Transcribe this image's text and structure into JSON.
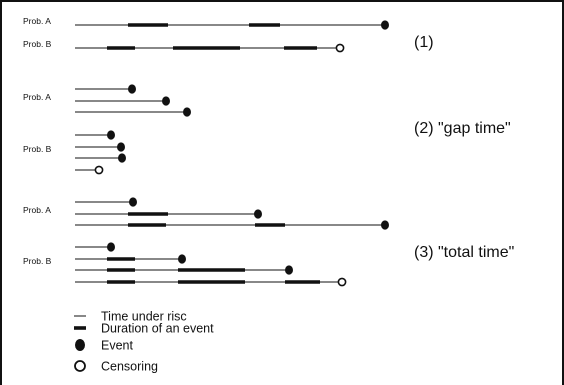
{
  "figure": {
    "line_color": "#111111",
    "background": "#ffffff",
    "panels": [
      {
        "case_label": "(1)",
        "groups": [
          {
            "label": "Prob. A",
            "rows": [
              {
                "line_end": 385,
                "events": [
                  [
                    128,
                    168
                  ],
                  [
                    249,
                    280
                  ]
                ],
                "end_marker": "event"
              }
            ]
          },
          {
            "label": "Prob. B",
            "rows": [
              {
                "line_end": 340,
                "events": [
                  [
                    107,
                    135
                  ],
                  [
                    173,
                    240
                  ],
                  [
                    284,
                    317
                  ]
                ],
                "end_marker": "censored"
              }
            ]
          }
        ]
      },
      {
        "case_label": "(2) \"gap time\"",
        "groups": [
          {
            "label": "Prob. A",
            "rows": [
              {
                "line_end": 132,
                "events": [],
                "end_marker": "event"
              },
              {
                "line_end": 166,
                "events": [],
                "end_marker": "event"
              },
              {
                "line_end": 187,
                "events": [],
                "end_marker": "event"
              }
            ]
          },
          {
            "label": "Prob. B",
            "rows": [
              {
                "line_end": 111,
                "events": [],
                "end_marker": "event"
              },
              {
                "line_end": 121,
                "events": [],
                "end_marker": "event"
              },
              {
                "line_end": 122,
                "events": [],
                "end_marker": "event"
              },
              {
                "line_end": 99,
                "events": [],
                "end_marker": "censored"
              }
            ]
          }
        ]
      },
      {
        "case_label": "(3) \"total time\"",
        "groups": [
          {
            "label": "Prob. A",
            "rows": [
              {
                "line_end": 133,
                "events": [],
                "end_marker": "event"
              },
              {
                "line_end": 258,
                "events": [
                  [
                    128,
                    168
                  ]
                ],
                "end_marker": "event"
              },
              {
                "line_end": 385,
                "events": [
                  [
                    128,
                    166
                  ],
                  [
                    255,
                    285
                  ]
                ],
                "end_marker": "event"
              }
            ]
          },
          {
            "label": "Prob. B",
            "rows": [
              {
                "line_end": 111,
                "events": [],
                "end_marker": "event"
              },
              {
                "line_end": 182,
                "events": [
                  [
                    107,
                    135
                  ]
                ],
                "end_marker": "event"
              },
              {
                "line_end": 289,
                "events": [
                  [
                    107,
                    135
                  ],
                  [
                    178,
                    245
                  ]
                ],
                "end_marker": "event"
              },
              {
                "line_end": 342,
                "events": [
                  [
                    107,
                    135
                  ],
                  [
                    178,
                    245
                  ],
                  [
                    285,
                    320
                  ]
                ],
                "end_marker": "censored"
              }
            ]
          }
        ]
      }
    ]
  },
  "legend": {
    "items": [
      {
        "symbol": "thin-line",
        "label": "Time under risc"
      },
      {
        "symbol": "thick-line",
        "label": "Duration of an event"
      },
      {
        "symbol": "filled-circle",
        "label": "Event"
      },
      {
        "symbol": "open-circle",
        "label": "Censoring"
      }
    ]
  }
}
